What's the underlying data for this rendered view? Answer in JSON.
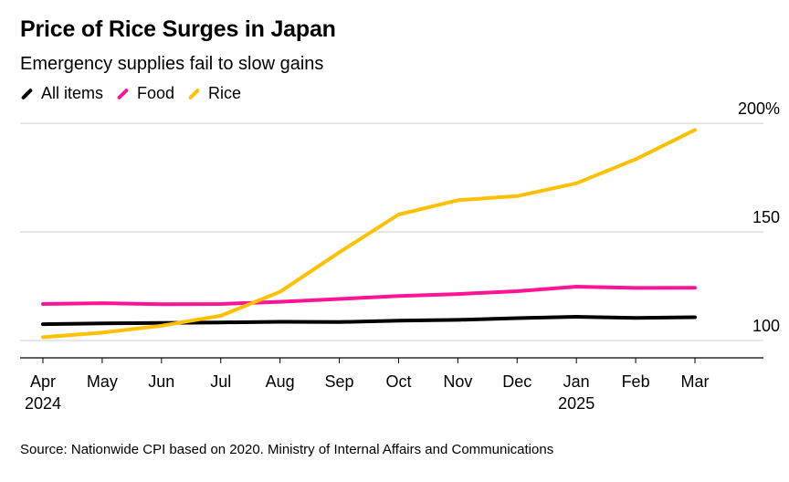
{
  "chart_data": {
    "type": "line",
    "title": "Price of Rice Surges in Japan",
    "subtitle": "Emergency supplies fail to slow gains",
    "categories": [
      "Apr",
      "May",
      "Jun",
      "Jul",
      "Aug",
      "Sep",
      "Oct",
      "Nov",
      "Dec",
      "Jan",
      "Feb",
      "Mar"
    ],
    "year_labels": [
      {
        "category_index": 0,
        "label": "2024"
      },
      {
        "category_index": 9,
        "label": "2025"
      }
    ],
    "series": [
      {
        "name": "All items",
        "color": "#000000",
        "values": [
          107.5,
          107.9,
          108.1,
          108.3,
          108.6,
          108.5,
          109.1,
          109.5,
          110.3,
          110.9,
          110.4,
          110.7
        ]
      },
      {
        "name": "Food",
        "color": "#ff1493",
        "values": [
          116.8,
          117.2,
          116.7,
          116.8,
          117.8,
          119.1,
          120.5,
          121.4,
          122.7,
          124.8,
          124.2,
          124.3
        ]
      },
      {
        "name": "Rice",
        "color": "#ffc000",
        "values": [
          101.5,
          103.6,
          106.8,
          111.4,
          122.4,
          140.6,
          158.0,
          164.6,
          166.5,
          172.4,
          183.5,
          197.0
        ]
      }
    ],
    "y_ticks": [
      {
        "value": 100,
        "label": "100"
      },
      {
        "value": 150,
        "label": "150"
      },
      {
        "value": 200,
        "label": "200%"
      }
    ],
    "ylim": [
      92,
      203
    ],
    "xlabel": "",
    "ylabel": "",
    "legend_position": "top-left",
    "source": "Source: Nationwide CPI based on 2020. Ministry of Internal Affairs and Communications"
  }
}
